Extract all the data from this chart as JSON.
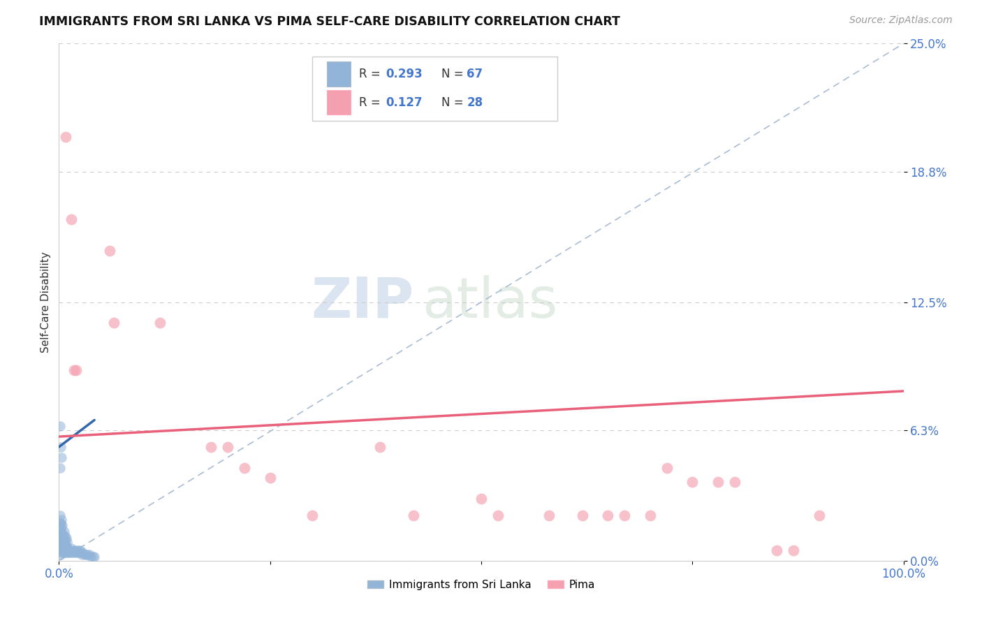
{
  "title": "IMMIGRANTS FROM SRI LANKA VS PIMA SELF-CARE DISABILITY CORRELATION CHART",
  "source": "Source: ZipAtlas.com",
  "ylabel": "Self-Care Disability",
  "xlim": [
    0,
    1.0
  ],
  "ylim": [
    0,
    0.25
  ],
  "ytick_vals": [
    0.0,
    0.063,
    0.125,
    0.188,
    0.25
  ],
  "ytick_labels": [
    "0.0%",
    "6.3%",
    "12.5%",
    "18.8%",
    "25.0%"
  ],
  "xtick_vals": [
    0.0,
    0.25,
    0.5,
    0.75,
    1.0
  ],
  "xtick_labels": [
    "0.0%",
    "",
    "",
    "",
    "100.0%"
  ],
  "blue_color": "#92B4D8",
  "pink_color": "#F4A0B0",
  "blue_line_color": "#3366AA",
  "pink_line_color": "#E8607A",
  "diag_color": "#AABBD4",
  "tick_color": "#4477CC",
  "bg_color": "#FFFFFF",
  "blue_scatter_x": [
    0.001,
    0.001,
    0.001,
    0.001,
    0.001,
    0.001,
    0.001,
    0.002,
    0.002,
    0.002,
    0.002,
    0.002,
    0.003,
    0.003,
    0.003,
    0.003,
    0.003,
    0.004,
    0.004,
    0.004,
    0.004,
    0.005,
    0.005,
    0.005,
    0.006,
    0.006,
    0.006,
    0.007,
    0.007,
    0.007,
    0.008,
    0.008,
    0.009,
    0.009,
    0.009,
    0.01,
    0.01,
    0.01,
    0.011,
    0.012,
    0.013,
    0.014,
    0.015,
    0.016,
    0.017,
    0.018,
    0.019,
    0.02,
    0.021,
    0.022,
    0.023,
    0.024,
    0.025,
    0.026,
    0.027,
    0.028,
    0.03,
    0.032,
    0.034,
    0.036,
    0.038,
    0.04,
    0.042,
    0.001,
    0.002,
    0.003,
    0.001
  ],
  "blue_scatter_y": [
    0.005,
    0.008,
    0.01,
    0.012,
    0.015,
    0.018,
    0.022,
    0.003,
    0.007,
    0.01,
    0.014,
    0.018,
    0.004,
    0.008,
    0.012,
    0.016,
    0.02,
    0.005,
    0.009,
    0.013,
    0.017,
    0.004,
    0.008,
    0.012,
    0.005,
    0.009,
    0.014,
    0.004,
    0.008,
    0.012,
    0.005,
    0.01,
    0.004,
    0.007,
    0.011,
    0.004,
    0.006,
    0.009,
    0.005,
    0.004,
    0.005,
    0.004,
    0.006,
    0.004,
    0.005,
    0.004,
    0.005,
    0.004,
    0.005,
    0.004,
    0.005,
    0.004,
    0.005,
    0.004,
    0.003,
    0.004,
    0.003,
    0.003,
    0.003,
    0.003,
    0.002,
    0.002,
    0.002,
    0.065,
    0.055,
    0.05,
    0.045
  ],
  "pink_scatter_x": [
    0.008,
    0.015,
    0.018,
    0.02,
    0.06,
    0.065,
    0.12,
    0.18,
    0.2,
    0.22,
    0.25,
    0.3,
    0.38,
    0.42,
    0.5,
    0.52,
    0.58,
    0.62,
    0.65,
    0.67,
    0.7,
    0.72,
    0.75,
    0.78,
    0.8,
    0.85,
    0.87,
    0.9
  ],
  "pink_scatter_y": [
    0.205,
    0.165,
    0.092,
    0.092,
    0.15,
    0.115,
    0.115,
    0.055,
    0.055,
    0.045,
    0.04,
    0.022,
    0.055,
    0.022,
    0.03,
    0.022,
    0.022,
    0.022,
    0.022,
    0.022,
    0.022,
    0.045,
    0.038,
    0.038,
    0.038,
    0.005,
    0.005,
    0.022
  ],
  "blue_trendline_x": [
    0.0,
    0.042
  ],
  "blue_trendline_y": [
    0.055,
    0.068
  ],
  "pink_trendline_x": [
    0.0,
    1.0
  ],
  "pink_trendline_y": [
    0.06,
    0.082
  ],
  "watermark_zip": "ZIP",
  "watermark_atlas": "atlas"
}
